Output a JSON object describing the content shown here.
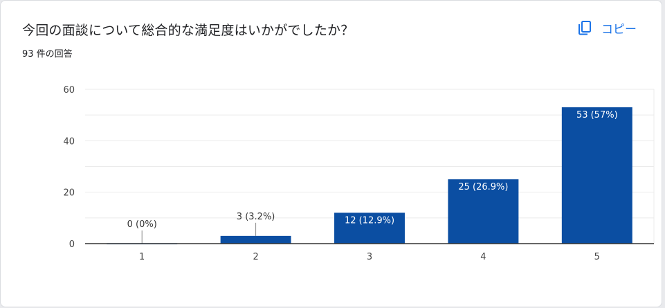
{
  "question": {
    "title": "今回の面談について総合的な満足度はいかがでしたか？",
    "response_count": "93 件の回答"
  },
  "copy_button": {
    "label": "コピー",
    "icon": "copy-icon"
  },
  "colors": {
    "bar": "#0b4ea2",
    "accent": "#1a73e8",
    "grid": "#ebebeb",
    "axis": "#333333"
  },
  "chart_data": {
    "type": "bar",
    "categories": [
      "1",
      "2",
      "3",
      "4",
      "5"
    ],
    "values": [
      0,
      3,
      12,
      25,
      53
    ],
    "data_labels": [
      "0 (0%)",
      "3 (3.2%)",
      "12 (12.9%)",
      "25 (26.9%)",
      "53 (57%)"
    ],
    "title": "",
    "xlabel": "",
    "ylabel": "",
    "ylim": [
      0,
      60
    ],
    "yticks": [
      0,
      20,
      40,
      60
    ],
    "grid": true,
    "legend": "none"
  }
}
